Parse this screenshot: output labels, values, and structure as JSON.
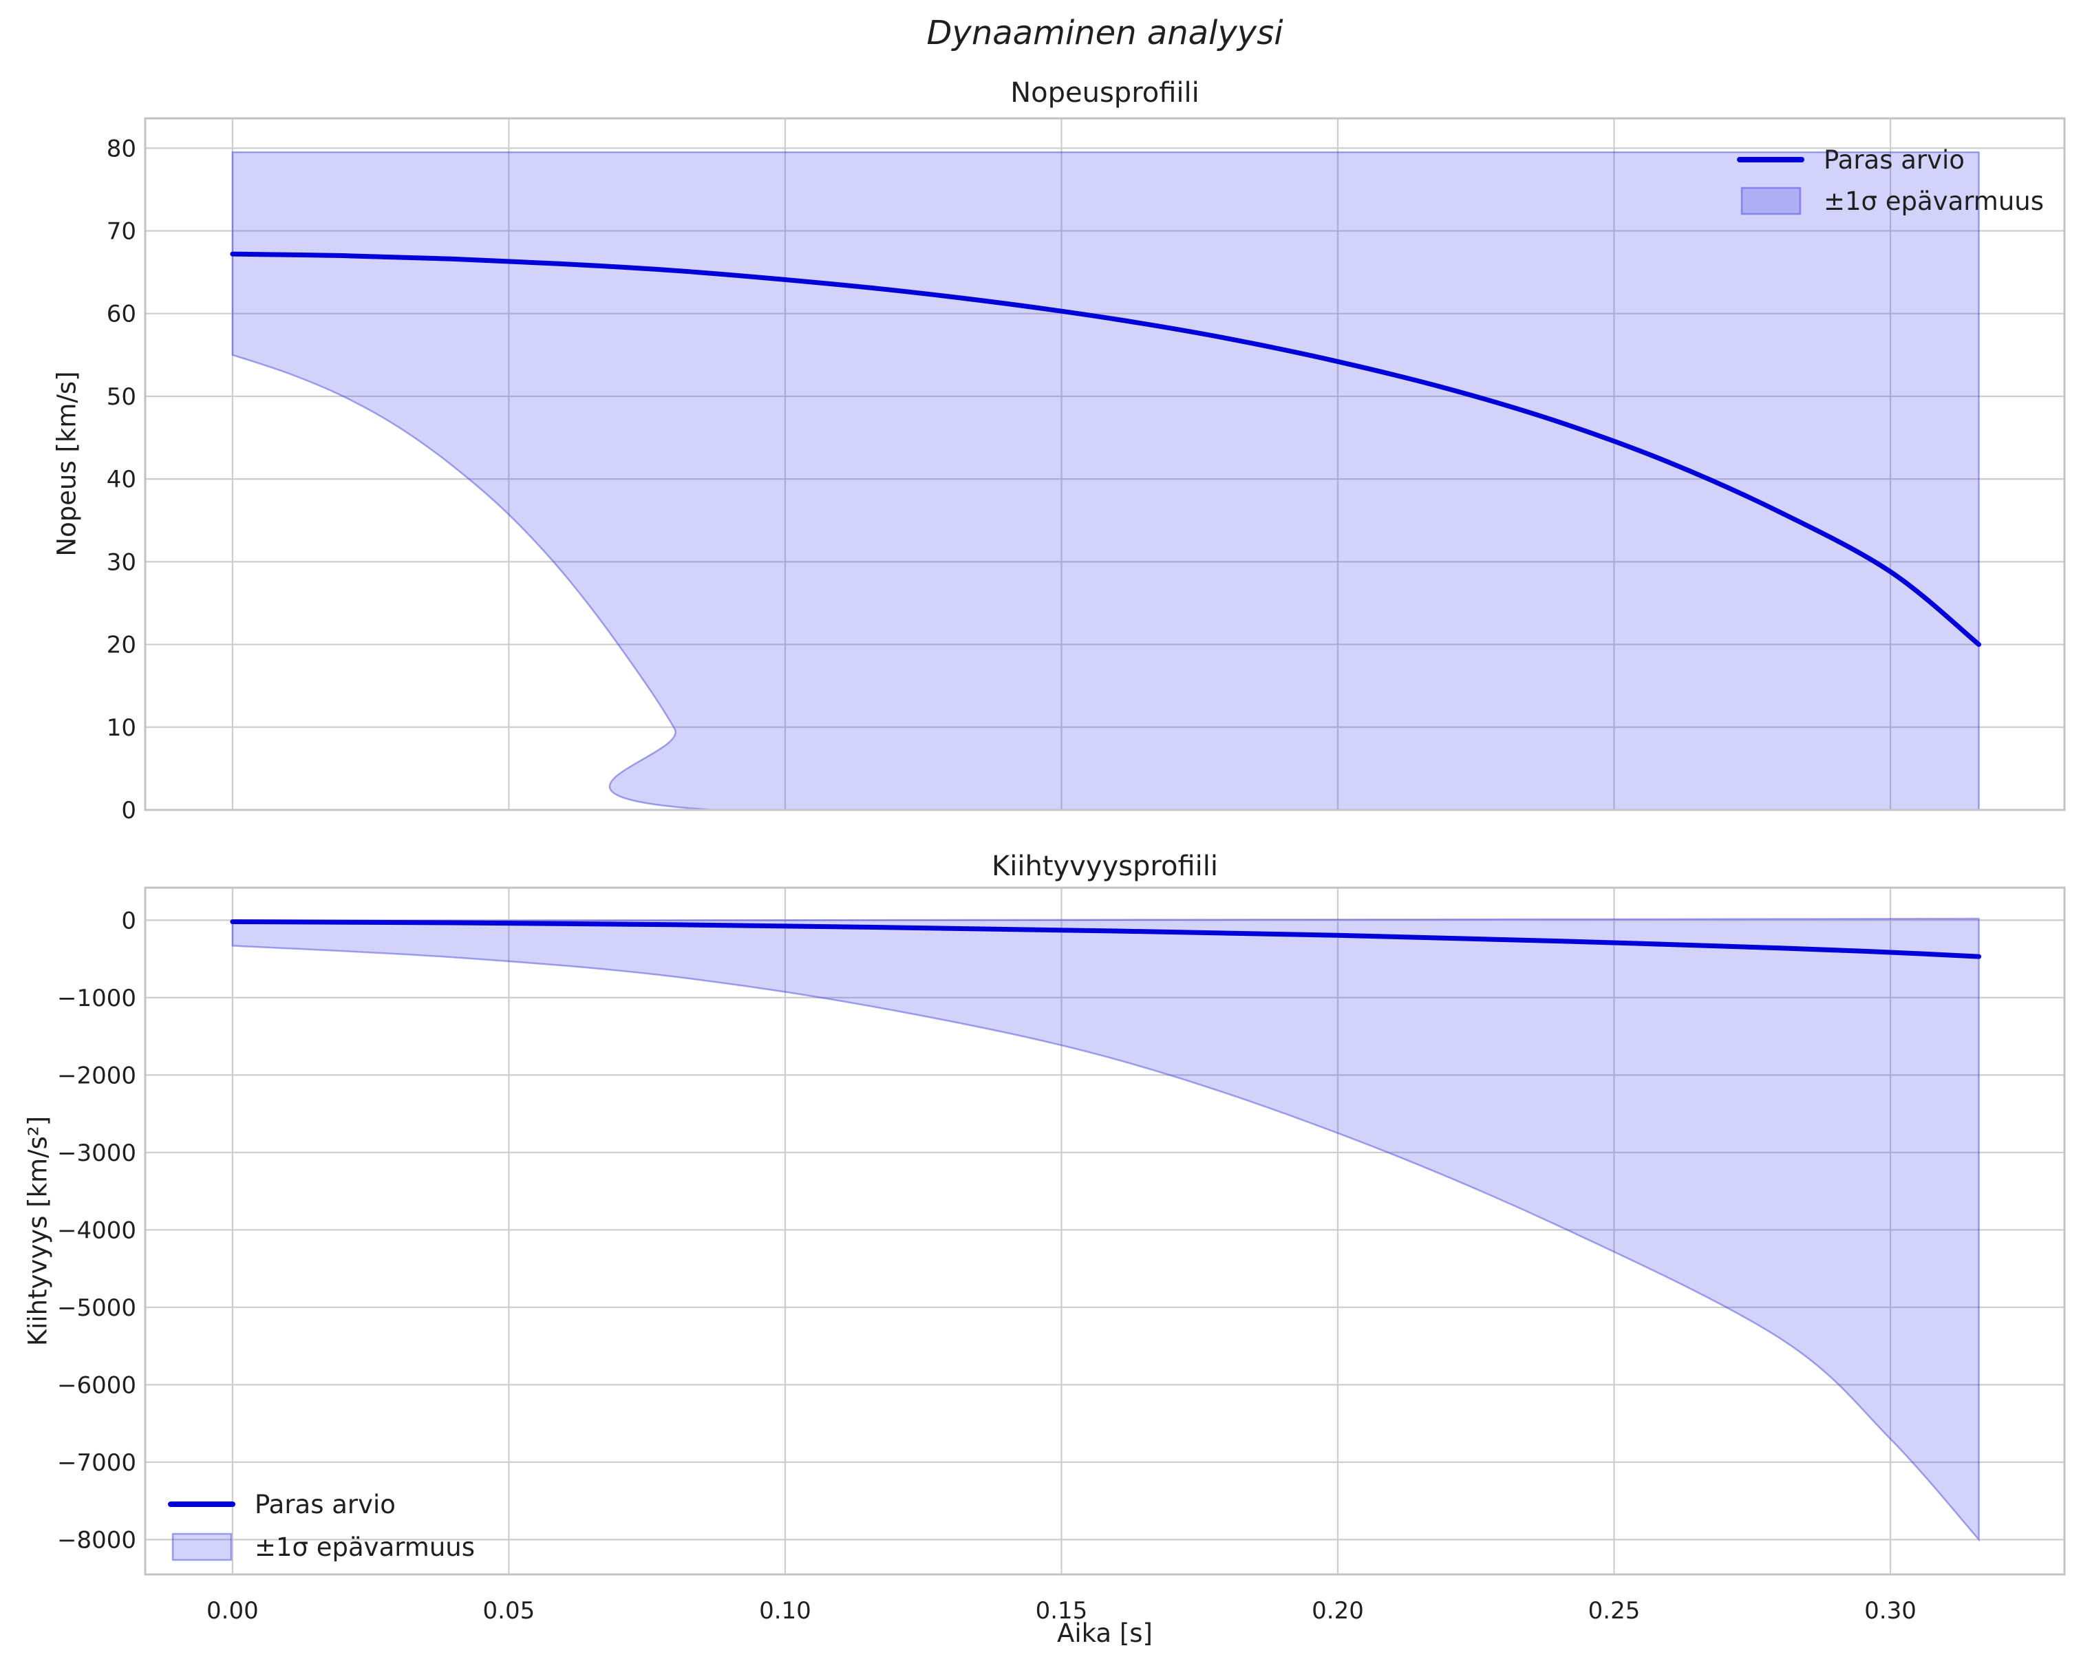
{
  "suptitle": "Dynaaminen analyysi",
  "legend": {
    "line_label": "Paras arvio",
    "band_label": "±1σ epävarmuus"
  },
  "colors": {
    "line": "#0000d9",
    "band_fill": "rgba(50,50,230,0.22)",
    "band_edge": "rgba(60,60,220,0.45)",
    "grid": "#cdcdcd",
    "spine": "#c3c3c3",
    "text": "#1f1f1f"
  },
  "chart_data": [
    {
      "type": "line",
      "title": "Nopeusprofiili",
      "xlabel": "",
      "ylabel": "Nopeus [km/s]",
      "xlim": [
        -0.0158,
        0.3315
      ],
      "ylim": [
        0,
        83.6
      ],
      "grid": true,
      "legend_position": "upper right",
      "xticks": [
        0.0,
        0.05,
        0.1,
        0.15,
        0.2,
        0.25,
        0.3
      ],
      "xtick_labels": [],
      "yticks": [
        0,
        10,
        20,
        30,
        40,
        50,
        60,
        70,
        80
      ],
      "ytick_labels": [
        "0",
        "10",
        "20",
        "30",
        "40",
        "50",
        "60",
        "70",
        "80"
      ],
      "series": [
        {
          "name": "Paras arvio",
          "role": "line",
          "x": [
            0,
            0.02,
            0.04,
            0.06,
            0.08,
            0.1,
            0.12,
            0.14,
            0.16,
            0.18,
            0.2,
            0.22,
            0.24,
            0.26,
            0.28,
            0.3,
            0.316
          ],
          "y": [
            67.2,
            67.0,
            66.6,
            66.0,
            65.2,
            64.1,
            62.8,
            61.2,
            59.3,
            57.0,
            54.2,
            50.9,
            46.9,
            42.0,
            36.0,
            28.8,
            20.0
          ]
        },
        {
          "name": "±1σ epävarmuus (yläraja)",
          "role": "band_upper",
          "x": [
            0,
            0.316
          ],
          "y": [
            79.5,
            79.5
          ]
        },
        {
          "name": "±1σ epävarmuus (alaraja)",
          "role": "band_lower",
          "x": [
            0,
            0.01,
            0.02,
            0.03,
            0.04,
            0.05,
            0.06,
            0.07,
            0.08,
            0.087,
            0.316
          ],
          "y": [
            55.0,
            52.8,
            50.0,
            46.3,
            41.5,
            35.7,
            28.5,
            19.8,
            9.8,
            0,
            0
          ]
        }
      ]
    },
    {
      "type": "line",
      "title": "Kiihtyvyysprofiili",
      "xlabel": "Aika [s]",
      "ylabel": "Kiihtyvyys [km/s²]",
      "xlim": [
        -0.0158,
        0.3315
      ],
      "ylim": [
        -8450,
        420
      ],
      "grid": true,
      "legend_position": "lower left",
      "xticks": [
        0.0,
        0.05,
        0.1,
        0.15,
        0.2,
        0.25,
        0.3
      ],
      "xtick_labels": [
        "0.00",
        "0.05",
        "0.10",
        "0.15",
        "0.20",
        "0.25",
        "0.30"
      ],
      "yticks": [
        0,
        -1000,
        -2000,
        -3000,
        -4000,
        -5000,
        -6000,
        -7000,
        -8000
      ],
      "ytick_labels": [
        "0",
        "−1000",
        "−2000",
        "−3000",
        "−4000",
        "−5000",
        "−6000",
        "−7000",
        "−8000"
      ],
      "series": [
        {
          "name": "Paras arvio",
          "role": "line",
          "x": [
            0,
            0.04,
            0.08,
            0.12,
            0.16,
            0.2,
            0.24,
            0.28,
            0.3,
            0.316
          ],
          "y": [
            -20,
            -33,
            -58,
            -95,
            -140,
            -195,
            -270,
            -360,
            -415,
            -470
          ]
        },
        {
          "name": "±1σ epävarmuus (yläraja)",
          "role": "band_upper",
          "x": [
            0,
            0.08,
            0.16,
            0.24,
            0.316
          ],
          "y": [
            -8,
            -2,
            5,
            12,
            20
          ]
        },
        {
          "name": "±1σ epävarmuus (alaraja)",
          "role": "band_lower",
          "x": [
            0,
            0.04,
            0.08,
            0.12,
            0.16,
            0.2,
            0.24,
            0.28,
            0.3,
            0.316
          ],
          "y": [
            -330,
            -480,
            -730,
            -1170,
            -1800,
            -2750,
            -3950,
            -5400,
            -6700,
            -8000
          ]
        }
      ]
    }
  ]
}
